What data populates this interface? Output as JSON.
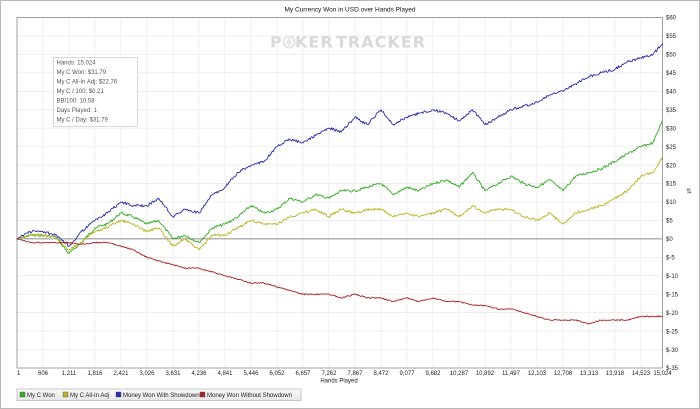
{
  "chart_data": {
    "type": "line",
    "title": "My Currency Won in USD over Hands Played",
    "xlabel": "Hands Played",
    "ylabel": "",
    "watermark": {
      "left": "P",
      "mid": "KER",
      "right": "TRACKER",
      "color": "#d8d8d8",
      "spade_color": "#e6e6e6"
    },
    "x_ticks": [
      1,
      606,
      1211,
      1816,
      2421,
      3026,
      3631,
      4236,
      4841,
      5446,
      6052,
      6657,
      7262,
      7867,
      8472,
      9077,
      9682,
      10287,
      10892,
      11497,
      12103,
      12708,
      13313,
      13918,
      14523,
      15024
    ],
    "x_tick_labels": [
      "1",
      "606",
      "1,211",
      "1,816",
      "2,421",
      "3,026",
      "3,631",
      "4,236",
      "4,841",
      "5,446",
      "6,052",
      "6,657",
      "7,262",
      "7,867",
      "8,472",
      "9,077",
      "9,682",
      "10,287",
      "10,892",
      "11,497",
      "12,103",
      "12,708",
      "13,313",
      "13,918",
      "14,523",
      "15,024"
    ],
    "xlim": [
      1,
      15024
    ],
    "y_ticks": [
      -35,
      -30,
      -25,
      -20,
      -15,
      -10,
      -5,
      0,
      5,
      10,
      15,
      20,
      25,
      30,
      35,
      40,
      45,
      50,
      55,
      60
    ],
    "y_tick_labels": [
      "$-35",
      "$-30",
      "$-25",
      "$-20",
      "$-15",
      "$-10",
      "$-5",
      "$0",
      "$5",
      "$10",
      "$15",
      "$20",
      "$25",
      "$30",
      "$35",
      "$40",
      "$45",
      "$50",
      "$55",
      "$60"
    ],
    "ylim": [
      -35,
      60
    ],
    "grid": true,
    "legend_position": "bottom-left",
    "series": [
      {
        "name": "My C Won",
        "color": "#33aa22",
        "x": [
          1,
          300,
          600,
          900,
          1211,
          1500,
          1816,
          2100,
          2421,
          2700,
          3026,
          3300,
          3631,
          3900,
          4236,
          4550,
          4841,
          5150,
          5446,
          5750,
          6052,
          6350,
          6657,
          6950,
          7262,
          7550,
          7867,
          8150,
          8472,
          8750,
          9077,
          9350,
          9682,
          10000,
          10287,
          10600,
          10892,
          11200,
          11497,
          11800,
          12103,
          12400,
          12708,
          13000,
          13313,
          13600,
          13918,
          14200,
          14523,
          14800,
          15024
        ],
        "y": [
          0,
          1,
          1,
          0.5,
          -4,
          -1,
          3,
          4,
          7,
          6,
          4,
          5,
          0,
          1,
          -1,
          3,
          4,
          6,
          9,
          7,
          8,
          11,
          10,
          12,
          11,
          13,
          13,
          14,
          15,
          12,
          14,
          13,
          15,
          16,
          14,
          18,
          13,
          15,
          17,
          15,
          14,
          16,
          13,
          17,
          18,
          19,
          21,
          23,
          25,
          26,
          32
        ]
      },
      {
        "name": "My C All-In Adj",
        "color": "#b8b422",
        "x": [
          1,
          300,
          600,
          900,
          1211,
          1500,
          1816,
          2100,
          2421,
          2700,
          3026,
          3300,
          3631,
          3900,
          4236,
          4550,
          4841,
          5150,
          5446,
          5750,
          6052,
          6350,
          6657,
          6950,
          7262,
          7550,
          7867,
          8150,
          8472,
          8750,
          9077,
          9350,
          9682,
          10000,
          10287,
          10600,
          10892,
          11200,
          11497,
          11800,
          12103,
          12400,
          12708,
          13000,
          13313,
          13600,
          13918,
          14200,
          14523,
          14800,
          15024
        ],
        "y": [
          0,
          1,
          1,
          0.5,
          -3,
          -1,
          2,
          3,
          5,
          4,
          2,
          3,
          -2,
          0,
          -3,
          1,
          1,
          3,
          5,
          4,
          4,
          6,
          7,
          8,
          6,
          8,
          7,
          8,
          8,
          6,
          7,
          6,
          7,
          8,
          6,
          9,
          7,
          8,
          8,
          6,
          5,
          7,
          4,
          7,
          8,
          9,
          11,
          13,
          17,
          18,
          22
        ]
      },
      {
        "name": "Money Won With Showdown",
        "color": "#2b2ba8",
        "x": [
          1,
          300,
          600,
          900,
          1211,
          1500,
          1816,
          2100,
          2421,
          2700,
          3026,
          3300,
          3631,
          3900,
          4236,
          4550,
          4841,
          5150,
          5446,
          5750,
          6052,
          6350,
          6657,
          6950,
          7262,
          7550,
          7867,
          8150,
          8472,
          8750,
          9077,
          9350,
          9682,
          10000,
          10287,
          10600,
          10892,
          11200,
          11497,
          11800,
          12103,
          12400,
          12708,
          13000,
          13313,
          13600,
          13918,
          14200,
          14523,
          14800,
          15024
        ],
        "y": [
          0,
          2,
          2,
          1,
          -2,
          2,
          5,
          7,
          10,
          9,
          9,
          11,
          6,
          8,
          7,
          12,
          14,
          18,
          20,
          21,
          25,
          27,
          26,
          28,
          30,
          29,
          33,
          31,
          35,
          31,
          33,
          34,
          35,
          34,
          32,
          35,
          31,
          33,
          35,
          36,
          37,
          39,
          40,
          42,
          44,
          45,
          46,
          48,
          49,
          50,
          53
        ]
      },
      {
        "name": "Money Won Without Showdown",
        "color": "#aa2222",
        "x": [
          1,
          300,
          600,
          900,
          1211,
          1500,
          1816,
          2100,
          2421,
          2700,
          3026,
          3300,
          3631,
          3900,
          4236,
          4550,
          4841,
          5150,
          5446,
          5750,
          6052,
          6350,
          6657,
          6950,
          7262,
          7550,
          7867,
          8150,
          8472,
          8750,
          9077,
          9350,
          9682,
          10000,
          10287,
          10600,
          10892,
          11200,
          11497,
          11800,
          12103,
          12400,
          12708,
          13000,
          13313,
          13600,
          13918,
          14200,
          14523,
          14800,
          15024
        ],
        "y": [
          0,
          -1,
          -1,
          -1,
          -1,
          -1.5,
          -1,
          -1,
          -2,
          -3,
          -5,
          -6,
          -7,
          -8,
          -8,
          -9,
          -10,
          -11,
          -12,
          -12,
          -13,
          -14,
          -15,
          -15,
          -15,
          -16,
          -15,
          -16,
          -16,
          -17,
          -16,
          -17,
          -16,
          -17,
          -17,
          -18,
          -18,
          -19,
          -19,
          -20,
          -21,
          -22,
          -22,
          -22,
          -23,
          -22,
          -22,
          -22,
          -21,
          -21,
          -21
        ]
      }
    ]
  },
  "stats_box": {
    "lines": [
      "Hands: 15,024",
      "My C Won: $31.79",
      "My C All-In Adj: $22.76",
      "My C / 100: $0.21",
      "BB/100: 10.58",
      "Days Played: 1",
      "My C / Day: $31.79"
    ]
  },
  "right_marker": "⇅"
}
